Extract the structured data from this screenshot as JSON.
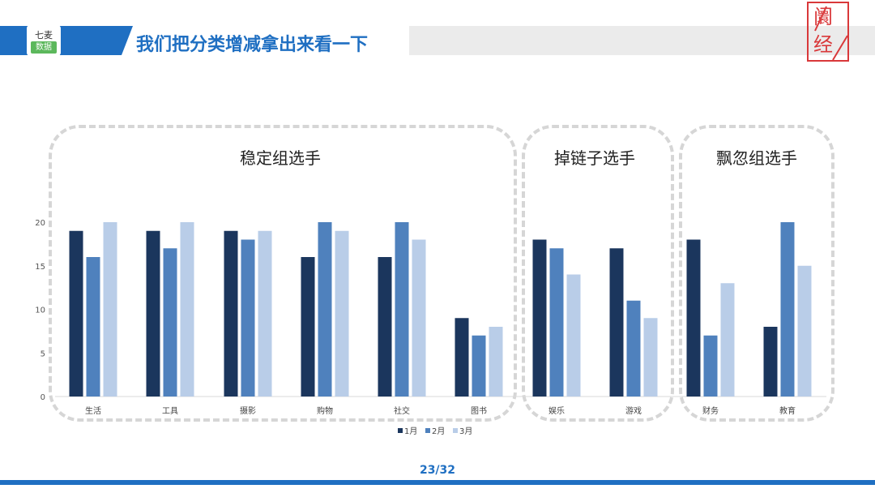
{
  "header": {
    "logo_top": "七麦",
    "logo_bottom": "数据",
    "title": "我们把分类增减拿出来看一下"
  },
  "stamp": {
    "line1": "阛",
    "line2": "经"
  },
  "groups": [
    {
      "title": "稳定组选手"
    },
    {
      "title": "掉链子选手"
    },
    {
      "title": "飘忽组选手"
    }
  ],
  "page": {
    "number": "23/32"
  },
  "colors": {
    "accent": "#1f6fc2",
    "jan": "#1b365d",
    "feb": "#4f81bd",
    "mar": "#b9cde8",
    "frame": "#d6d6d6",
    "stamp": "#d9383a"
  },
  "chart_data": {
    "type": "bar",
    "categories": [
      "生活",
      "工具",
      "摄影",
      "购物",
      "社交",
      "图书",
      "娱乐",
      "游戏",
      "财务",
      "教育"
    ],
    "series": [
      {
        "name": "1月",
        "values": [
          19,
          19,
          19,
          16,
          16,
          9,
          18,
          17,
          18,
          8
        ]
      },
      {
        "name": "2月",
        "values": [
          16,
          17,
          18,
          20,
          20,
          7,
          17,
          11,
          7,
          20
        ]
      },
      {
        "name": "3月",
        "values": [
          20,
          20,
          19,
          19,
          18,
          8,
          14,
          9,
          13,
          15
        ]
      }
    ],
    "yticks": [
      "0",
      "5",
      "10",
      "15",
      "20"
    ],
    "ylim": [
      0,
      20
    ],
    "grid": false,
    "legend": "bottom-center",
    "title": "",
    "xlabel": "",
    "ylabel": ""
  }
}
